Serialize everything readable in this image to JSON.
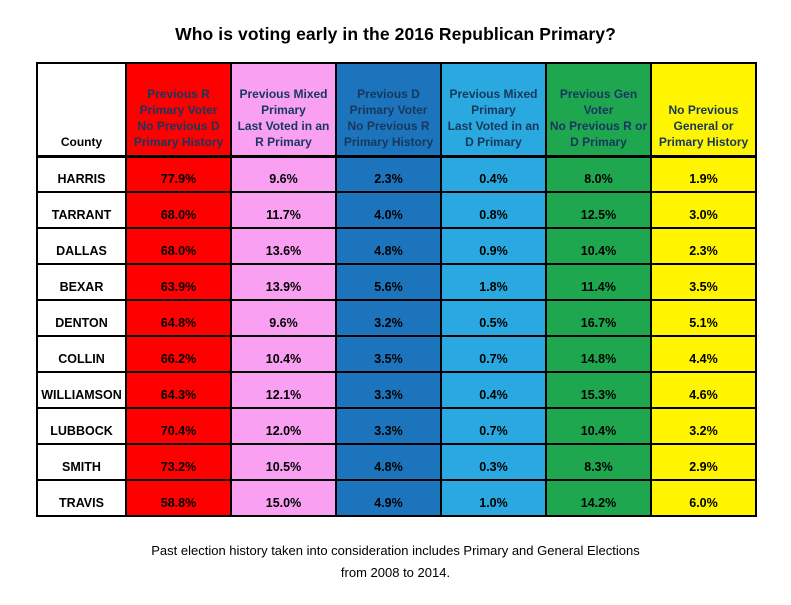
{
  "title": "Who is voting early in the 2016 Republican Primary?",
  "footer": {
    "line1": "Past election history taken into consideration includes Primary and General Elections",
    "line2": "from 2008 to 2014."
  },
  "colors": {
    "red": "#fe0000",
    "pink": "#f9a0f2",
    "dark_blue": "#1c75bc",
    "light_blue": "#29a9e0",
    "green": "#1fa750",
    "yellow": "#fff500",
    "header_text": "#17375d",
    "black": "#000000",
    "white": "#ffffff"
  },
  "chart_data": {
    "type": "table",
    "title": "Who is voting early in the 2016 Republican Primary?",
    "county_header": "County",
    "columns": [
      {
        "label": "Previous R\nPrimary Voter\nNo Previous D\nPrimary History",
        "bg": "#fe0000"
      },
      {
        "label": "Previous Mixed\nPrimary\nLast Voted in an\nR Primary",
        "bg": "#f9a0f2"
      },
      {
        "label": "Previous D\nPrimary Voter\nNo Previous R\nPrimary History",
        "bg": "#1c75bc"
      },
      {
        "label": "Previous Mixed\nPrimary\nLast Voted in an\nD Primary",
        "bg": "#29a9e0"
      },
      {
        "label": "Previous Gen\nVoter\nNo Previous R or\nD Primary",
        "bg": "#1fa750"
      },
      {
        "label": "No Previous\nGeneral or\nPrimary History",
        "bg": "#fff500"
      }
    ],
    "rows": [
      {
        "county": "HARRIS",
        "values": [
          "77.9%",
          "9.6%",
          "2.3%",
          "0.4%",
          "8.0%",
          "1.9%"
        ]
      },
      {
        "county": "TARRANT",
        "values": [
          "68.0%",
          "11.7%",
          "4.0%",
          "0.8%",
          "12.5%",
          "3.0%"
        ]
      },
      {
        "county": "DALLAS",
        "values": [
          "68.0%",
          "13.6%",
          "4.8%",
          "0.9%",
          "10.4%",
          "2.3%"
        ]
      },
      {
        "county": "BEXAR",
        "values": [
          "63.9%",
          "13.9%",
          "5.6%",
          "1.8%",
          "11.4%",
          "3.5%"
        ]
      },
      {
        "county": "DENTON",
        "values": [
          "64.8%",
          "9.6%",
          "3.2%",
          "0.5%",
          "16.7%",
          "5.1%"
        ]
      },
      {
        "county": "COLLIN",
        "values": [
          "66.2%",
          "10.4%",
          "3.5%",
          "0.7%",
          "14.8%",
          "4.4%"
        ]
      },
      {
        "county": "WILLIAMSON",
        "values": [
          "64.3%",
          "12.1%",
          "3.3%",
          "0.4%",
          "15.3%",
          "4.6%"
        ]
      },
      {
        "county": "LUBBOCK",
        "values": [
          "70.4%",
          "12.0%",
          "3.3%",
          "0.7%",
          "10.4%",
          "3.2%"
        ]
      },
      {
        "county": "SMITH",
        "values": [
          "73.2%",
          "10.5%",
          "4.8%",
          "0.3%",
          "8.3%",
          "2.9%"
        ]
      },
      {
        "county": "TRAVIS",
        "values": [
          "58.8%",
          "15.0%",
          "4.9%",
          "1.0%",
          "14.2%",
          "6.0%"
        ]
      }
    ]
  }
}
